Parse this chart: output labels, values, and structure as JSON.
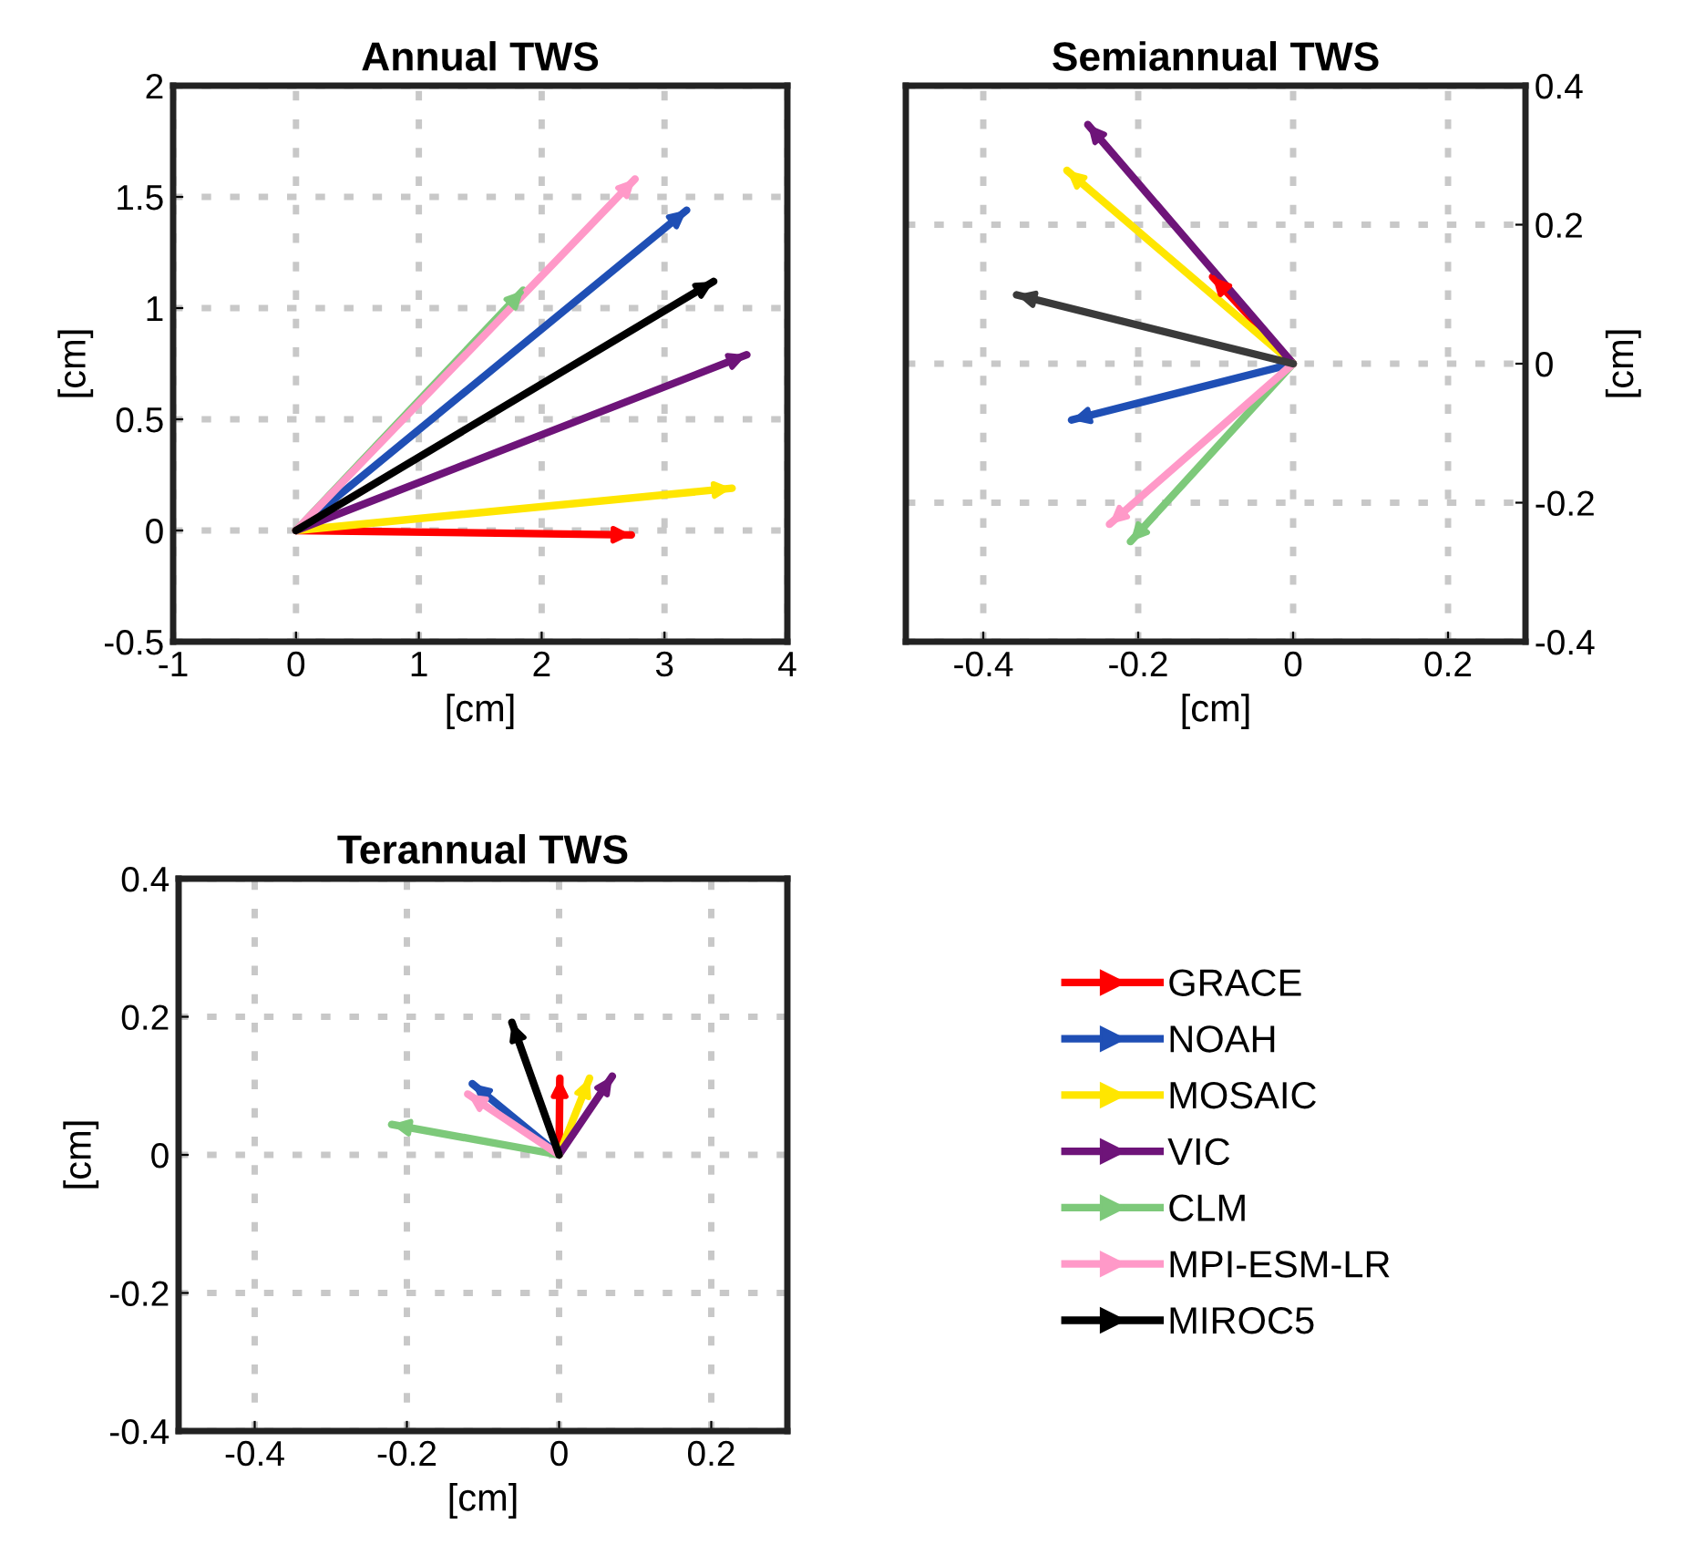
{
  "chart_data": [
    {
      "type": "line",
      "title": "Annual TWS",
      "xlabel": "[cm]",
      "ylabel": "[cm]",
      "xlim": [
        -1,
        4
      ],
      "ylim": [
        -0.5,
        2
      ],
      "xticks": [
        -1,
        0,
        1,
        2,
        3,
        4
      ],
      "yticks": [
        -0.5,
        0,
        0.5,
        1,
        1.5,
        2
      ],
      "grid": true,
      "line_style": "solid",
      "series": [
        {
          "color": "#ff0000",
          "x": [
            0,
            2.73
          ],
          "values": [
            0,
            -0.02
          ]
        },
        {
          "color": "#1f4fb5",
          "x": [
            0,
            3.18
          ],
          "values": [
            0,
            1.44
          ]
        },
        {
          "color": "#ffe600",
          "x": [
            0,
            3.55
          ],
          "values": [
            0,
            0.19
          ]
        },
        {
          "color": "#6e1479",
          "x": [
            0,
            3.67
          ],
          "values": [
            0,
            0.79
          ]
        },
        {
          "color": "#7dc97a",
          "x": [
            0,
            1.85
          ],
          "values": [
            0,
            1.08
          ]
        },
        {
          "color": "#ff99c8",
          "x": [
            0,
            2.76
          ],
          "values": [
            0,
            1.58
          ]
        },
        {
          "color": "#000000",
          "x": [
            0,
            3.4
          ],
          "values": [
            0,
            1.12
          ]
        }
      ]
    },
    {
      "type": "line",
      "title": "Semiannual TWS",
      "xlabel": "[cm]",
      "y2label": "[cm]",
      "xlim": [
        -0.5,
        0.3
      ],
      "y2lim": [
        -0.4,
        0.4
      ],
      "xticks": [
        -0.4,
        -0.2,
        0,
        0.2
      ],
      "y2ticks": [
        -0.4,
        -0.2,
        0,
        0.2,
        0.4
      ],
      "grid": true,
      "line_style": "solid",
      "series": [
        {
          "color": "#ff0000",
          "axis": "y2",
          "x": [
            0,
            -0.104
          ],
          "values": [
            0,
            0.125
          ]
        },
        {
          "color": "#1f4fb5",
          "axis": "y2",
          "x": [
            0,
            -0.286
          ],
          "values": [
            0,
            -0.081
          ]
        },
        {
          "color": "#ffe600",
          "axis": "y2",
          "x": [
            0,
            -0.292
          ],
          "values": [
            0,
            0.278
          ]
        },
        {
          "color": "#6e1479",
          "axis": "y2",
          "x": [
            0,
            -0.265
          ],
          "values": [
            0,
            0.344
          ]
        },
        {
          "color": "#7dc97a",
          "axis": "y2",
          "x": [
            0,
            -0.21
          ],
          "values": [
            0,
            -0.256
          ]
        },
        {
          "color": "#ff99c8",
          "axis": "y2",
          "x": [
            0,
            -0.237
          ],
          "values": [
            0,
            -0.231
          ]
        },
        {
          "color": "#3a3a3a",
          "axis": "y2",
          "x": [
            0,
            -0.357
          ],
          "values": [
            0,
            0.099
          ]
        }
      ]
    },
    {
      "type": "line",
      "title": "Terannual TWS",
      "xlabel": "[cm]",
      "ylabel": "[cm]",
      "xlim": [
        -0.5,
        0.3
      ],
      "ylim": [
        -0.4,
        0.4
      ],
      "xticks": [
        -0.4,
        -0.2,
        0,
        0.2
      ],
      "yticks": [
        -0.4,
        -0.2,
        0,
        0.2,
        0.4
      ],
      "grid": true,
      "line_style": "solid",
      "legend": "right",
      "series": [
        {
          "name": "GRACE",
          "color": "#ff0000",
          "x": [
            0,
            0.001
          ],
          "values": [
            0,
            0.111
          ]
        },
        {
          "name": "NOAH",
          "color": "#1f4fb5",
          "x": [
            0,
            -0.114
          ],
          "values": [
            0,
            0.103
          ]
        },
        {
          "name": "MOSAIC",
          "color": "#ffe600",
          "x": [
            0,
            0.04
          ],
          "values": [
            0,
            0.111
          ]
        },
        {
          "name": "VIC",
          "color": "#6e1479",
          "x": [
            0,
            0.07
          ],
          "values": [
            0,
            0.114
          ]
        },
        {
          "name": "CLM",
          "color": "#7dc97a",
          "x": [
            0,
            -0.22
          ],
          "values": [
            0,
            0.044
          ]
        },
        {
          "name": "MPI-ESM-LR",
          "color": "#ff99c8",
          "x": [
            0,
            -0.12
          ],
          "values": [
            0,
            0.088
          ]
        },
        {
          "name": "MIROC5",
          "color": "#000000",
          "x": [
            0,
            -0.062
          ],
          "values": [
            0,
            0.192
          ]
        }
      ]
    }
  ]
}
